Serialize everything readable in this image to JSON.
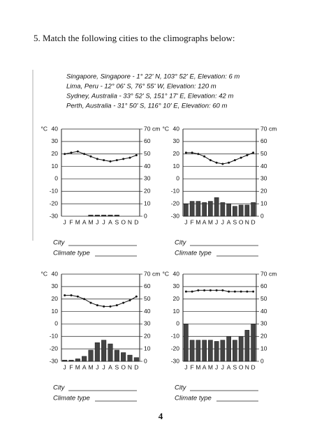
{
  "question": "5. Match the following cities to the climographs below:",
  "cities": [
    "Singapore, Singapore - 1° 22' N, 103° 52' E, Elevation: 6 m",
    "Lima, Peru - 12° 06' S, 76° 55' W, Elevation: 120 m",
    "Sydney, Australia - 33° 52' S, 151° 17' E, Elevation: 42 m",
    "Perth, Australia - 31° 50' S, 116° 10' E, Elevation: 60 m"
  ],
  "answer_labels": {
    "city": "City",
    "climate_type": "Climate type"
  },
  "page_number": "4",
  "chart_data": [
    {
      "type": "climograph",
      "y_label": "°C",
      "y2_label": "cm",
      "categories": [
        "J",
        "F",
        "M",
        "A",
        "M",
        "J",
        "J",
        "A",
        "S",
        "O",
        "N",
        "D"
      ],
      "series": [
        {
          "color": "#111",
          "values": [
            20,
            21,
            22,
            20,
            18,
            16,
            15,
            14,
            15,
            16,
            17,
            19
          ]
        },
        {
          "color": "#444",
          "axis": "y2",
          "values": [
            0,
            0,
            0,
            0,
            1,
            1,
            1,
            1,
            1,
            0,
            0,
            0
          ]
        }
      ],
      "ylim": [
        -30,
        40
      ],
      "yticks": [
        -30,
        -20,
        -10,
        0,
        10,
        20,
        30,
        40
      ],
      "y2lim": [
        0,
        70
      ],
      "y2ticks": [
        0,
        10,
        20,
        30,
        40,
        50,
        60,
        70
      ],
      "grid": true
    },
    {
      "type": "climograph",
      "y_label": "°C",
      "y2_label": "cm",
      "categories": [
        "J",
        "F",
        "M",
        "A",
        "M",
        "J",
        "J",
        "A",
        "S",
        "O",
        "N",
        "D"
      ],
      "series": [
        {
          "color": "#111",
          "values": [
            21,
            21,
            20,
            18,
            15,
            13,
            12,
            13,
            15,
            17,
            19,
            21
          ]
        },
        {
          "color": "#444",
          "axis": "y2",
          "values": [
            10,
            12,
            12,
            11,
            12,
            15,
            11,
            10,
            8,
            9,
            9,
            11
          ]
        }
      ],
      "ylim": [
        -30,
        40
      ],
      "yticks": [
        -30,
        -20,
        -10,
        0,
        10,
        20,
        30,
        40
      ],
      "y2lim": [
        0,
        70
      ],
      "y2ticks": [
        0,
        10,
        20,
        30,
        40,
        50,
        60,
        70
      ],
      "grid": true
    },
    {
      "type": "climograph",
      "y_label": "°C",
      "y2_label": "cm",
      "categories": [
        "J",
        "F",
        "M",
        "A",
        "M",
        "J",
        "J",
        "A",
        "S",
        "O",
        "N",
        "D"
      ],
      "series": [
        {
          "color": "#111",
          "values": [
            23,
            23,
            22,
            20,
            17,
            15,
            14,
            14,
            15,
            17,
            19,
            22
          ]
        },
        {
          "color": "#444",
          "axis": "y2",
          "values": [
            1,
            1,
            2,
            4,
            9,
            15,
            17,
            14,
            9,
            7,
            5,
            3
          ]
        }
      ],
      "ylim": [
        -30,
        40
      ],
      "yticks": [
        -30,
        -20,
        -10,
        0,
        10,
        20,
        30,
        40
      ],
      "y2lim": [
        0,
        70
      ],
      "y2ticks": [
        0,
        10,
        20,
        30,
        40,
        50,
        60,
        70
      ],
      "grid": true
    },
    {
      "type": "climograph",
      "y_label": "°C",
      "y2_label": "cm",
      "categories": [
        "J",
        "F",
        "M",
        "A",
        "M",
        "J",
        "J",
        "A",
        "S",
        "O",
        "N",
        "D"
      ],
      "series": [
        {
          "color": "#111",
          "values": [
            26,
            26,
            27,
            27,
            27,
            27,
            27,
            26,
            26,
            26,
            26,
            26
          ]
        },
        {
          "color": "#444",
          "axis": "y2",
          "values": [
            30,
            17,
            17,
            17,
            17,
            16,
            17,
            20,
            17,
            20,
            25,
            30
          ]
        }
      ],
      "ylim": [
        -30,
        40
      ],
      "yticks": [
        -30,
        -20,
        -10,
        0,
        10,
        20,
        30,
        40
      ],
      "y2lim": [
        0,
        70
      ],
      "y2ticks": [
        0,
        10,
        20,
        30,
        40,
        50,
        60,
        70
      ],
      "grid": true
    }
  ]
}
